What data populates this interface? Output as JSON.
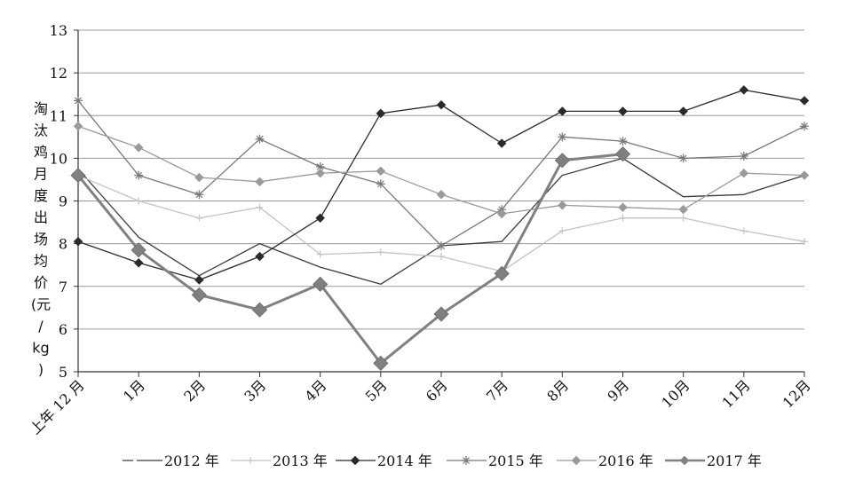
{
  "chart_data": {
    "type": "line",
    "title": "",
    "xlabel": "",
    "ylabel": "淘汰鸡月度出场均价(元/kg)",
    "ylabel_chars": [
      "淘",
      "汰",
      "鸡",
      "月",
      "度",
      "出",
      "场",
      "均",
      "价",
      "(元",
      "/",
      "kg",
      ")"
    ],
    "categories": [
      "上年 12 月",
      "1月",
      "2月",
      "3月",
      "4月",
      "5月",
      "6月",
      "7月",
      "8月",
      "9月",
      "10月",
      "11月",
      "12月"
    ],
    "ylim": [
      5,
      13
    ],
    "yticks": [
      5,
      6,
      7,
      8,
      9,
      10,
      11,
      12,
      13
    ],
    "grid": true,
    "legend_position": "bottom",
    "series": [
      {
        "name": "2012 年",
        "color": "#3a3a3a",
        "width": 1.3,
        "marker": "none",
        "dash": "long",
        "values": [
          9.75,
          8.15,
          7.25,
          8.0,
          7.45,
          7.05,
          7.95,
          8.05,
          9.6,
          10.0,
          9.1,
          9.15,
          9.6
        ]
      },
      {
        "name": "2013 年",
        "color": "#c4c4c4",
        "width": 1.3,
        "marker": "plus",
        "values": [
          9.6,
          9.0,
          8.6,
          8.85,
          7.75,
          7.8,
          7.7,
          7.35,
          8.3,
          8.6,
          8.6,
          8.3,
          8.05
        ]
      },
      {
        "name": "2014 年",
        "color": "#2a2a2a",
        "width": 1.3,
        "marker": "diamond",
        "values": [
          8.05,
          7.55,
          7.15,
          7.7,
          8.6,
          11.05,
          11.25,
          10.35,
          11.1,
          11.1,
          11.1,
          11.6,
          11.35
        ]
      },
      {
        "name": "2015 年",
        "color": "#777777",
        "width": 1.3,
        "marker": "star",
        "values": [
          11.35,
          9.6,
          9.15,
          10.45,
          9.8,
          9.4,
          7.95,
          8.8,
          10.5,
          10.4,
          10.0,
          10.05,
          10.75
        ]
      },
      {
        "name": "2016 年",
        "color": "#9a9a9a",
        "width": 1.3,
        "marker": "diamond",
        "values": [
          10.75,
          10.25,
          9.55,
          9.45,
          9.65,
          9.7,
          9.15,
          8.7,
          8.9,
          8.85,
          8.8,
          9.65,
          9.6
        ]
      },
      {
        "name": "2017 年",
        "color": "#808080",
        "width": 3,
        "marker": "diamond-large",
        "values": [
          9.6,
          7.85,
          6.8,
          6.45,
          7.05,
          5.2,
          6.35,
          7.3,
          9.95,
          10.1,
          null,
          null,
          null
        ]
      }
    ]
  }
}
